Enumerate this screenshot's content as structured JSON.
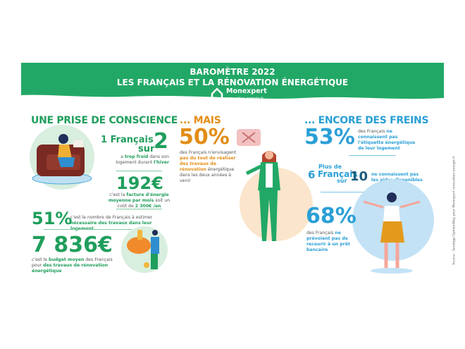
{
  "header": {
    "title_line1": "BAROMÈTRE 2022",
    "title_line2": "LES FRANÇAIS ET LA RÉNOVATION ÉNERGÉTIQUE",
    "logo_name": "Monexpert",
    "logo_url": "renovation-energie.fr"
  },
  "colors": {
    "green": "#1f9e5c",
    "orange": "#e28d17",
    "blue": "#2a9fd6"
  },
  "col1": {
    "heading": "UNE PRISE DE CONSCIENCE",
    "stat1": {
      "pre": "1 Français",
      "sur": "sur",
      "num": "2",
      "t1": "a ",
      "t1b": "trop froid",
      "t2": " dans son logement durant ",
      "t2b": "l'hiver"
    },
    "stat2": {
      "value": "192€",
      "t1": "c'est la ",
      "t1b": "facture d'énergie moyenne par mois",
      "t2": " soit un coût de ",
      "t2b": "2 300€ /an"
    },
    "stat3": {
      "value": "51%",
      "t1": "c'est le nombre de Français à estimer ",
      "t1b": "nécessaire des travaux dans leur logement"
    },
    "stat4": {
      "value": "7 836€",
      "t1": "c'est le ",
      "t1b": "budget moyen",
      "t2": " des Français pour ",
      "t2b": "des travaux de rénovation énergétique"
    }
  },
  "col2": {
    "heading": "... MAIS",
    "stat": {
      "value": "50%",
      "t1": "des Français n'envisagent ",
      "t1b": "pas du tout de réaliser des travaux de rénovation",
      "t2": " énergétique dans les deux années à venir"
    }
  },
  "col3": {
    "heading": "... ENCORE DES FREINS",
    "stat1": {
      "value": "53%",
      "t1": "des Français ",
      "t1b": "ne connaissent pas l'étiquette énergétique de leur logement"
    },
    "stat2": {
      "plus": "Plus de",
      "num1": "6",
      "francais": "Français",
      "sur": "sur",
      "num2": "10",
      "t1b": "ne connaissent pas les aides disponibles"
    },
    "stat3": {
      "value": "68%",
      "t1": "des Français ",
      "t1b": "ne prévoient pas de recourir à un prêt bancaire"
    }
  },
  "source": "Source : Sondage OpinionWay pour Monexpert renovation-energie.fr"
}
